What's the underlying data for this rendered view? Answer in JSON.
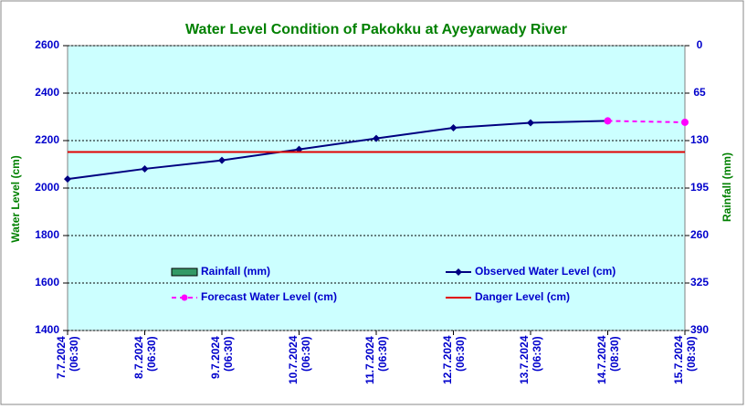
{
  "chart_data": {
    "type": "line",
    "title": "Water Level Condition of Pakokku at Ayeyarwady River",
    "ylabel": "Water Level (cm)",
    "y2label": "Rainfall (mm)",
    "categories": [
      "7.7.2024\n(06:30)",
      "8.7.2024\n(06:30)",
      "9.7.2024\n(06:30)",
      "10.7.2024\n(06:30)",
      "11.7.2024\n(06:30)",
      "12.7.2024\n(06:30)",
      "13.7.2024\n(06:30)",
      "14.7.2024\n(08:30)",
      "15.7.2024\n(08:30)"
    ],
    "series": [
      {
        "name": "Rainfall (mm)",
        "kind": "bar",
        "axis": "y2",
        "color": "#339966",
        "values": [
          null,
          null,
          null,
          null,
          null,
          null,
          null,
          null,
          null
        ]
      },
      {
        "name": "Observed Water Level (cm)",
        "kind": "line",
        "color": "#000080",
        "marker": "diamond",
        "dashed": false,
        "values": [
          2038,
          2081,
          2117,
          2163,
          2209,
          2254,
          2275,
          2283,
          null
        ]
      },
      {
        "name": "Forecast Water Level (cm)",
        "kind": "line",
        "color": "#ff00ff",
        "marker": "circle",
        "dashed": true,
        "values": [
          null,
          null,
          null,
          null,
          null,
          null,
          null,
          2283,
          2277
        ]
      },
      {
        "name": "Danger Level (cm)",
        "kind": "line",
        "color": "#e00000",
        "marker": null,
        "dashed": false,
        "values": [
          2152,
          2152,
          2152,
          2152,
          2152,
          2152,
          2152,
          2152,
          2152
        ]
      }
    ],
    "ylim": [
      1400,
      2600
    ],
    "yticks": [
      1400,
      1600,
      1800,
      2000,
      2200,
      2400,
      2600
    ],
    "y2lim": [
      390,
      0
    ],
    "y2ticks": [
      0,
      65,
      130,
      195,
      260,
      325,
      390
    ],
    "grid": true,
    "plot_background": "#ccffff"
  }
}
